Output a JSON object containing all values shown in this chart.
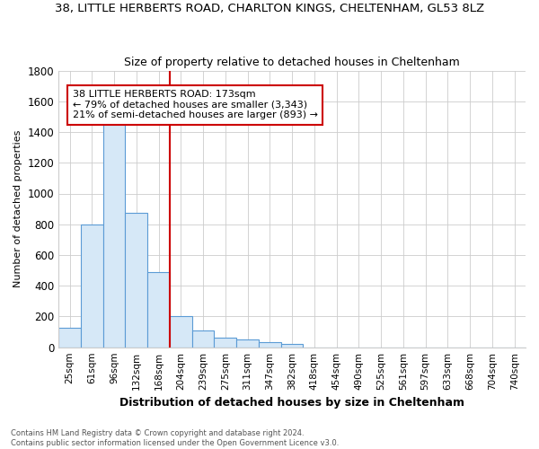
{
  "title1": "38, LITTLE HERBERTS ROAD, CHARLTON KINGS, CHELTENHAM, GL53 8LZ",
  "title2": "Size of property relative to detached houses in Cheltenham",
  "xlabel": "Distribution of detached houses by size in Cheltenham",
  "ylabel": "Number of detached properties",
  "categories": [
    "25sqm",
    "61sqm",
    "96sqm",
    "132sqm",
    "168sqm",
    "204sqm",
    "239sqm",
    "275sqm",
    "311sqm",
    "347sqm",
    "382sqm",
    "418sqm",
    "454sqm",
    "490sqm",
    "525sqm",
    "561sqm",
    "597sqm",
    "633sqm",
    "668sqm",
    "704sqm",
    "740sqm"
  ],
  "values": [
    125,
    800,
    1480,
    875,
    490,
    205,
    108,
    65,
    50,
    33,
    20,
    0,
    0,
    0,
    0,
    0,
    0,
    0,
    0,
    0,
    0
  ],
  "bar_color": "#d6e8f7",
  "bar_edge_color": "#5b9bd5",
  "red_line_color": "#cc0000",
  "red_line_index": 4,
  "ylim": [
    0,
    1800
  ],
  "yticks": [
    0,
    200,
    400,
    600,
    800,
    1000,
    1200,
    1400,
    1600,
    1800
  ],
  "annotation_text": "38 LITTLE HERBERTS ROAD: 173sqm\n← 79% of detached houses are smaller (3,343)\n21% of semi-detached houses are larger (893) →",
  "annotation_box_facecolor": "#ffffff",
  "annotation_box_edgecolor": "#cc0000",
  "footnote1": "Contains HM Land Registry data © Crown copyright and database right 2024.",
  "footnote2": "Contains public sector information licensed under the Open Government Licence v3.0.",
  "title1_fontsize": 9.5,
  "title2_fontsize": 9,
  "xlabel_fontsize": 9,
  "ylabel_fontsize": 8,
  "grid_color": "#cccccc",
  "bg_color": "#ffffff",
  "fig_bg_color": "#ffffff"
}
